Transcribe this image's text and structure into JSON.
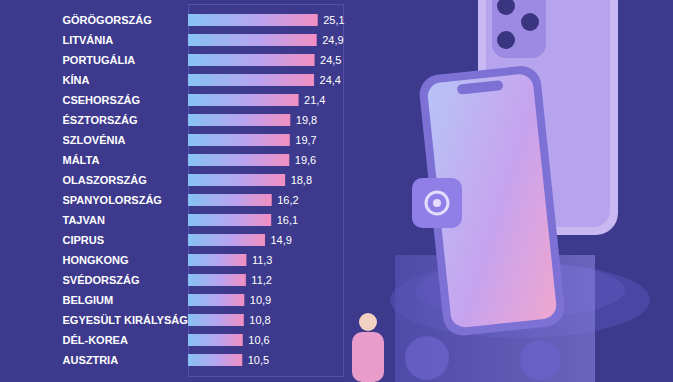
{
  "chart_data": {
    "type": "bar",
    "orientation": "horizontal",
    "categories": [
      "GÖRÖGORSZÁG",
      "LITVÁNIA",
      "PORTUGÁLIA",
      "KÍNA",
      "CSEHORSZÁG",
      "ÉSZTORSZÁG",
      "SZLOVÉNIA",
      "MÁLTA",
      "OLASZORSZÁG",
      "SPANYOLORSZÁG",
      "TAJVAN",
      "CIPRUS",
      "HONGKONG",
      "SVÉDORSZÁG",
      "BELGIUM",
      "EGYESÜLT KIRÁLYSÁG",
      "DÉL-KOREA",
      "AUSZTRIA"
    ],
    "values": [
      25.1,
      24.9,
      24.5,
      24.4,
      21.4,
      19.8,
      19.7,
      19.6,
      18.8,
      16.2,
      16.1,
      14.9,
      11.3,
      11.2,
      10.9,
      10.8,
      10.6,
      10.5
    ],
    "value_labels": [
      "25,1",
      "24,9",
      "24,5",
      "24,4",
      "21,4",
      "19,8",
      "19,7",
      "19,6",
      "18,8",
      "16,2",
      "16,1",
      "14,9",
      "11,3",
      "11,2",
      "10,9",
      "10,8",
      "10,6",
      "10,5"
    ],
    "xlim": [
      0,
      30
    ],
    "data_labels": true,
    "tick_labels": "y",
    "grid": false
  }
}
